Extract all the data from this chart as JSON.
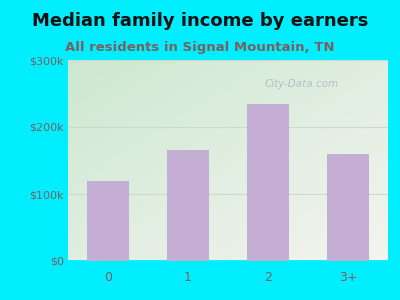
{
  "title": "Median family income by earners",
  "subtitle": "All residents in Signal Mountain, TN",
  "categories": [
    "0",
    "1",
    "2",
    "3+"
  ],
  "values": [
    120000,
    165000,
    235000,
    160000
  ],
  "bar_color": "#c4aed4",
  "ylim": [
    0,
    300000
  ],
  "yticks": [
    0,
    100000,
    200000,
    300000
  ],
  "ytick_labels": [
    "$0",
    "$100k",
    "$200k",
    "$300k"
  ],
  "background_outer": "#00eeff",
  "title_fontsize": 13,
  "subtitle_fontsize": 9.5,
  "watermark": "City-Data.com",
  "title_color": "#111111",
  "subtitle_color": "#7a6060",
  "tick_label_color": "#7a6060",
  "grid_color": "#c8dcc8",
  "grad_top_left": "#cde8d0",
  "grad_bottom_right": "#f0f0ee"
}
